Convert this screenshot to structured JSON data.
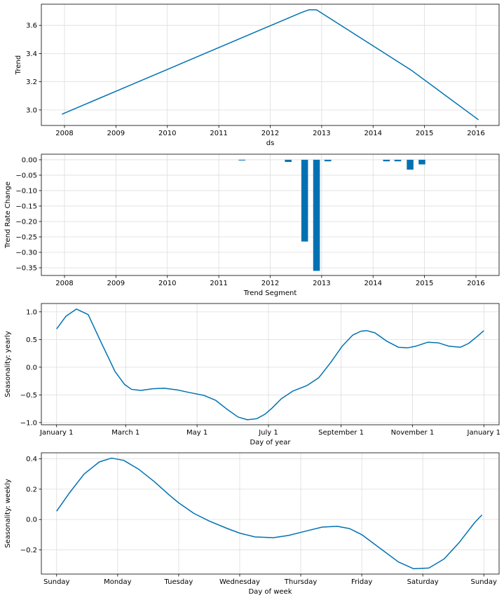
{
  "colors": {
    "series": "#0072b2",
    "grid": "#dcdcdc",
    "frame": "#000000"
  },
  "chart_data": [
    {
      "type": "line",
      "xlabel": "ds",
      "ylabel": "Trend",
      "grid": true,
      "xlim": [
        2007.55,
        2016.45
      ],
      "ylim": [
        2.89,
        3.75
      ],
      "x_ticks": [
        2008,
        2009,
        2010,
        2011,
        2012,
        2013,
        2014,
        2015,
        2016
      ],
      "x_tick_labels": [
        "2008",
        "2009",
        "2010",
        "2011",
        "2012",
        "2013",
        "2014",
        "2015",
        "2016"
      ],
      "y_ticks": [
        3.0,
        3.2,
        3.4,
        3.6
      ],
      "y_tick_labels": [
        "3.0",
        "3.2",
        "3.4",
        "3.6"
      ],
      "series": [
        {
          "x": [
            2007.95,
            2012.6,
            2012.75,
            2012.9,
            2014.75,
            2016.05
          ],
          "y": [
            2.97,
            3.69,
            3.71,
            3.71,
            3.28,
            2.93
          ]
        }
      ]
    },
    {
      "type": "bar",
      "xlabel": "Trend Segment",
      "ylabel": "Trend Rate Change",
      "grid": true,
      "xlim": [
        2007.55,
        2016.45
      ],
      "ylim": [
        -0.375,
        0.018
      ],
      "x_ticks": [
        2008,
        2009,
        2010,
        2011,
        2012,
        2013,
        2014,
        2015,
        2016
      ],
      "x_tick_labels": [
        "2008",
        "2009",
        "2010",
        "2011",
        "2012",
        "2013",
        "2014",
        "2015",
        "2016"
      ],
      "y_ticks": [
        0.0,
        -0.05,
        -0.1,
        -0.15,
        -0.2,
        -0.25,
        -0.3,
        -0.35
      ],
      "y_tick_labels": [
        "0.00",
        "−0.05",
        "−0.10",
        "−0.15",
        "−0.20",
        "−0.25",
        "−0.30",
        "−0.35"
      ],
      "bar_width": 0.13,
      "x": [
        2011.45,
        2012.35,
        2012.67,
        2012.9,
        2013.12,
        2014.26,
        2014.48,
        2014.72,
        2014.95
      ],
      "values": [
        -0.001,
        -0.007,
        -0.265,
        -0.36,
        -0.005,
        -0.005,
        -0.005,
        -0.032,
        -0.015
      ]
    },
    {
      "type": "line",
      "xlabel": "Day of year",
      "ylabel": "Seasonality: yearly",
      "grid": true,
      "xlim": [
        -13,
        378
      ],
      "ylim": [
        -1.04,
        1.15
      ],
      "x_ticks": [
        0,
        59,
        120,
        181,
        243,
        304,
        365
      ],
      "x_tick_labels": [
        "January 1",
        "March 1",
        "May 1",
        "July 1",
        "September 1",
        "November 1",
        "January 1"
      ],
      "y_ticks": [
        1.0,
        0.5,
        0.0,
        -0.5,
        -1.0
      ],
      "y_tick_labels": [
        "1.0",
        "0.5",
        "0.0",
        "−0.5",
        "−1.0"
      ],
      "series": [
        {
          "x": [
            0,
            8,
            17,
            27,
            38,
            50,
            58,
            64,
            72,
            82,
            92,
            103,
            114,
            126,
            136,
            145,
            155,
            163,
            171,
            178,
            184,
            192,
            202,
            214,
            224,
            234,
            244,
            253,
            260,
            265,
            272,
            282,
            292,
            300,
            307,
            317,
            326,
            335,
            345,
            352,
            359,
            365
          ],
          "y": [
            0.69,
            0.92,
            1.05,
            0.95,
            0.45,
            -0.08,
            -0.31,
            -0.4,
            -0.42,
            -0.39,
            -0.38,
            -0.41,
            -0.46,
            -0.51,
            -0.6,
            -0.75,
            -0.9,
            -0.95,
            -0.93,
            -0.85,
            -0.74,
            -0.57,
            -0.43,
            -0.33,
            -0.19,
            0.08,
            0.38,
            0.58,
            0.65,
            0.66,
            0.62,
            0.47,
            0.36,
            0.35,
            0.38,
            0.45,
            0.44,
            0.38,
            0.36,
            0.43,
            0.55,
            0.66
          ]
        }
      ]
    },
    {
      "type": "line",
      "xlabel": "Day of week",
      "ylabel": "Seasonality: weekly",
      "grid": true,
      "xlim": [
        -0.25,
        7.25
      ],
      "ylim": [
        -0.36,
        0.44
      ],
      "x_ticks": [
        0,
        1,
        2,
        3,
        4,
        5,
        6,
        7
      ],
      "x_tick_labels": [
        "Sunday",
        "Monday",
        "Tuesday",
        "Wednesday",
        "Thursday",
        "Friday",
        "Saturday",
        "Sunday"
      ],
      "y_ticks": [
        0.4,
        0.2,
        0.0,
        -0.2
      ],
      "y_tick_labels": [
        "0.4",
        "0.2",
        "0.0",
        "−0.2"
      ],
      "series": [
        {
          "x": [
            0,
            0.2,
            0.45,
            0.7,
            0.9,
            1.1,
            1.35,
            1.6,
            1.85,
            2.0,
            2.25,
            2.5,
            2.8,
            3.0,
            3.25,
            3.55,
            3.8,
            4.05,
            4.35,
            4.6,
            4.8,
            5.0,
            5.3,
            5.6,
            5.85,
            6.1,
            6.35,
            6.6,
            6.85,
            6.97
          ],
          "y": [
            0.055,
            0.17,
            0.3,
            0.38,
            0.405,
            0.39,
            0.33,
            0.25,
            0.16,
            0.11,
            0.04,
            -0.01,
            -0.06,
            -0.09,
            -0.115,
            -0.12,
            -0.105,
            -0.08,
            -0.05,
            -0.045,
            -0.06,
            -0.1,
            -0.19,
            -0.28,
            -0.325,
            -0.32,
            -0.26,
            -0.15,
            -0.02,
            0.03
          ]
        }
      ]
    }
  ]
}
